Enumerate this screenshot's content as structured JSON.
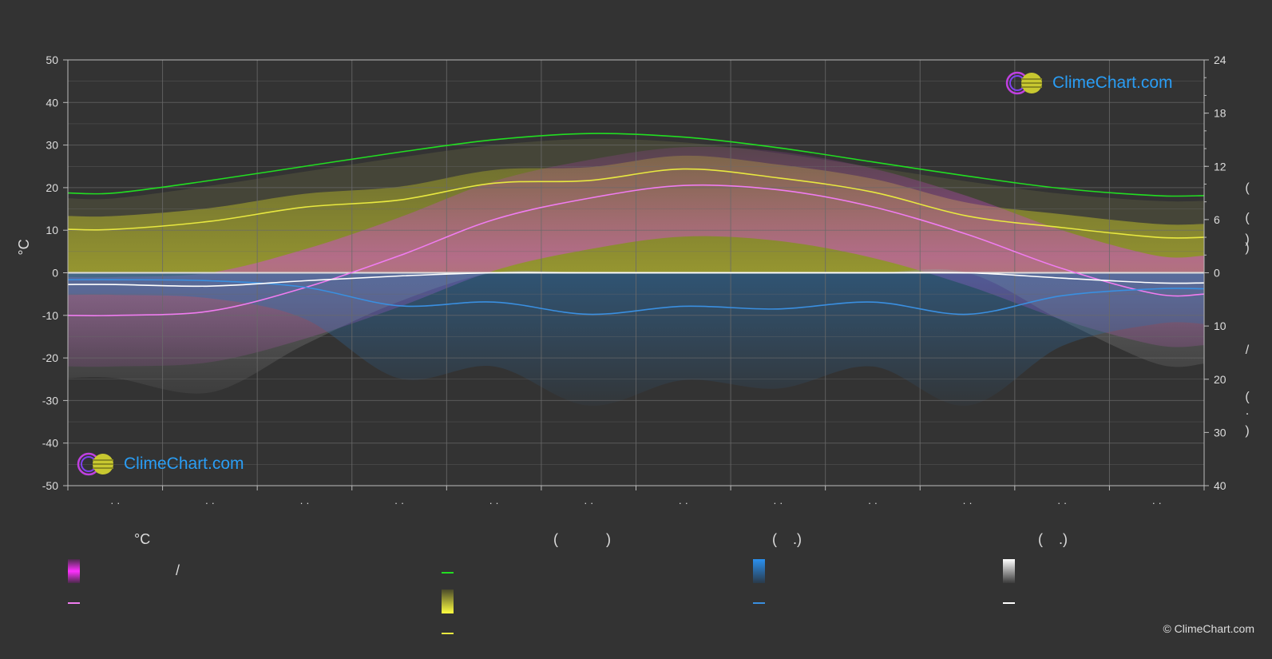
{
  "chart_data": {
    "type": "area",
    "y_left": {
      "label": "°C",
      "ticks": [
        50,
        40,
        30,
        20,
        10,
        0,
        -10,
        -20,
        -30,
        -40,
        -50
      ],
      "range": [
        -50,
        50
      ]
    },
    "y_right": {
      "ticks_hours": [
        24,
        18,
        12,
        6,
        0
      ],
      "ticks_mm": [
        10,
        20,
        30,
        40
      ],
      "label_glyphs": [
        "(",
        ")",
        "(",
        ")",
        "/",
        "(",
        "·",
        ")"
      ]
    },
    "months": 12,
    "x_tick_labels": [
      "· ·",
      "· ·",
      "· ·",
      "· ·",
      "· ·",
      "· ·",
      "· ·",
      "· ·",
      "· ·",
      "· ·",
      "· ·",
      "· ·"
    ],
    "series": [
      {
        "key": "daylight",
        "color": "#22dd22",
        "values_hours": [
          9.0,
          10.4,
          12.0,
          13.6,
          15.0,
          15.7,
          15.3,
          14.1,
          12.5,
          10.9,
          9.5,
          8.7
        ]
      },
      {
        "key": "sunshine",
        "color": "#e8e840",
        "values_hours": [
          4.9,
          5.8,
          7.4,
          8.2,
          10.1,
          10.4,
          11.7,
          10.7,
          9.1,
          6.4,
          5.1,
          4.0
        ]
      },
      {
        "key": "temp_max",
        "color": "#f07cf0",
        "values": [
          -10.0,
          -9.0,
          -3.5,
          4.0,
          12.5,
          17.5,
          20.5,
          19.5,
          15.5,
          9.0,
          1.0,
          -5.0
        ]
      },
      {
        "key": "temp_min",
        "color": "#f07cf0",
        "values": [
          -10.0,
          -9.0,
          -3.5,
          4.0,
          12.5,
          17.5,
          20.5,
          19.5,
          15.5,
          9.0,
          1.0,
          -5.0
        ]
      },
      {
        "key": "precipitation",
        "color": "#3a8fe0",
        "values_mm": [
          1.3,
          1.5,
          2.7,
          6.2,
          5.5,
          7.8,
          6.3,
          6.8,
          5.5,
          7.8,
          4.3,
          3.0
        ]
      },
      {
        "key": "snow",
        "color": "#ffffff",
        "values_mm": [
          2.2,
          2.5,
          1.5,
          0.6,
          0.0,
          0.0,
          0.0,
          0.0,
          0.0,
          0.0,
          1.0,
          1.9
        ]
      }
    ]
  },
  "logo": {
    "text": "ClimeChart.com"
  },
  "copyright": "© ClimeChart.com",
  "legend": {
    "temp_header": "°C",
    "temp_slash": "/",
    "sun_header": "(            )",
    "rain_header": "(    .)",
    "snow_header": "(    .)"
  },
  "colors": {
    "background": "#333333",
    "grid": "#6a6a6a",
    "daylight": "#22dd22",
    "sunshine": "#e8e840",
    "temperature": "#f07cf0",
    "precipitation": "#3a8fe0",
    "snow": "#ffffff",
    "logo_text": "#2a9df4"
  }
}
